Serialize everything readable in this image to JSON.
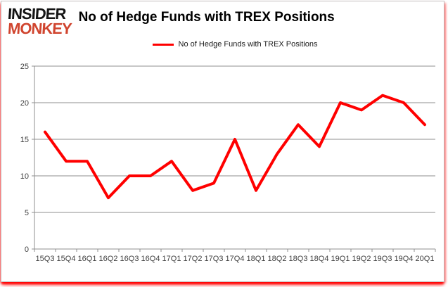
{
  "logo": {
    "line1": "INSIDER",
    "line2": "MONKEY",
    "insider_color": "#141414",
    "monkey_color": "#d0452f"
  },
  "header": {
    "title": "No of Hedge Funds with TREX Positions"
  },
  "legend": {
    "label": "No of Hedge Funds with TREX Positions",
    "swatch_color": "#ff0000"
  },
  "colors": {
    "line": "#ff0000",
    "grid": "#8f8f8f",
    "axis_text": "#3f3f3f",
    "frame_glow": "#ff0000",
    "background": "#ffffff"
  },
  "chart_data": {
    "type": "line",
    "title": "No of Hedge Funds with TREX Positions",
    "legend": [
      "No of Hedge Funds with TREX Positions"
    ],
    "legend_position": "top-center",
    "grid": true,
    "categories": [
      "15Q3",
      "15Q4",
      "16Q1",
      "16Q2",
      "16Q3",
      "16Q4",
      "17Q1",
      "17Q2",
      "17Q3",
      "17Q4",
      "18Q1",
      "18Q2",
      "18Q3",
      "18Q4",
      "19Q1",
      "19Q2",
      "19Q3",
      "19Q4",
      "20Q1"
    ],
    "series": [
      {
        "name": "No of Hedge Funds with TREX Positions",
        "values": [
          16,
          12,
          12,
          7,
          10,
          10,
          12,
          8,
          9,
          15,
          8,
          13,
          17,
          14,
          20,
          19,
          21,
          20,
          17
        ]
      }
    ],
    "xlabel": "",
    "ylabel": "",
    "ylim": [
      0,
      25
    ],
    "ytick_step": 5,
    "line_color": "#ff0000",
    "line_width": 4
  }
}
